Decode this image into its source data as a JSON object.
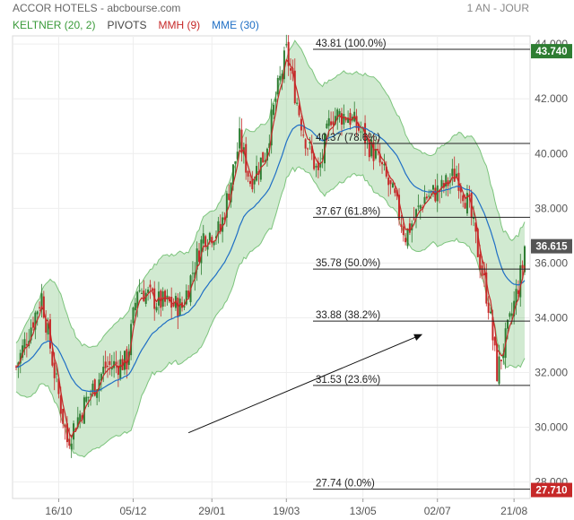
{
  "header": {
    "title": "ACCOR HOTELS - abcbourse.com",
    "period": "1 AN - JOUR"
  },
  "legend": [
    {
      "label": "KELTNER (20, 2)",
      "color": "#3a9a3a"
    },
    {
      "label": "PIVOTS",
      "color": "#444444"
    },
    {
      "label": "MMH (9)",
      "color": "#c62828"
    },
    {
      "label": "MME (30)",
      "color": "#1f6fc5"
    }
  ],
  "chart_data": {
    "type": "candlestick",
    "title": "ACCOR HOTELS",
    "ylim": [
      27.4,
      44.3
    ],
    "y_ticks": [
      "28.000",
      "30.000",
      "32.000",
      "34.000",
      "36.000",
      "38.000",
      "40.000",
      "42.000",
      "44.000"
    ],
    "y_tick_values": [
      28,
      30,
      32,
      34,
      36,
      38,
      40,
      42,
      44
    ],
    "x_ticks": [
      "16/10",
      "05/12",
      "29/01",
      "19/03",
      "13/05",
      "02/07",
      "21/08"
    ],
    "x_tick_index": [
      20,
      55,
      92,
      127,
      163,
      198,
      234
    ],
    "n_days": 240,
    "last_price": "36.615",
    "pivot_badges": [
      {
        "label": "43.740",
        "value": 43.74,
        "color": "#2e7d32"
      },
      {
        "label": "27.710",
        "value": 27.71,
        "color": "#c62828"
      }
    ],
    "fibonacci": [
      {
        "label": "43.81  (100.0%)",
        "value": 43.81
      },
      {
        "label": "40.37  (78.6%)",
        "value": 40.37
      },
      {
        "label": "37.67  (61.8%)",
        "value": 37.67
      },
      {
        "label": "35.78  (50.0%)",
        "value": 35.78
      },
      {
        "label": "33.88  (38.2%)",
        "value": 33.88
      },
      {
        "label": "31.53  (23.6%)",
        "value": 31.53
      },
      {
        "label": "27.74  (0.0%)",
        "value": 27.74
      }
    ],
    "price_path": [
      [
        0,
        32.2
      ],
      [
        12,
        34.8
      ],
      [
        18,
        32.0
      ],
      [
        24,
        29.5
      ],
      [
        33,
        31.0
      ],
      [
        42,
        32.2
      ],
      [
        52,
        32.4
      ],
      [
        57,
        35.1
      ],
      [
        66,
        34.6
      ],
      [
        78,
        34.4
      ],
      [
        88,
        37.0
      ],
      [
        96,
        37.2
      ],
      [
        105,
        40.5
      ],
      [
        110,
        39.0
      ],
      [
        117,
        40.0
      ],
      [
        122,
        42.0
      ],
      [
        127,
        43.7
      ],
      [
        135,
        40.8
      ],
      [
        142,
        39.2
      ],
      [
        148,
        41.4
      ],
      [
        156,
        41.4
      ],
      [
        162,
        40.8
      ],
      [
        170,
        39.8
      ],
      [
        178,
        38.3
      ],
      [
        183,
        37.0
      ],
      [
        192,
        38.4
      ],
      [
        200,
        38.7
      ],
      [
        207,
        39.3
      ],
      [
        213,
        38.0
      ],
      [
        222,
        34.5
      ],
      [
        226,
        32.0
      ],
      [
        232,
        33.8
      ],
      [
        240,
        36.6
      ]
    ],
    "arrow": {
      "from": [
        81,
        29.8
      ],
      "to": [
        191,
        33.4
      ]
    }
  }
}
